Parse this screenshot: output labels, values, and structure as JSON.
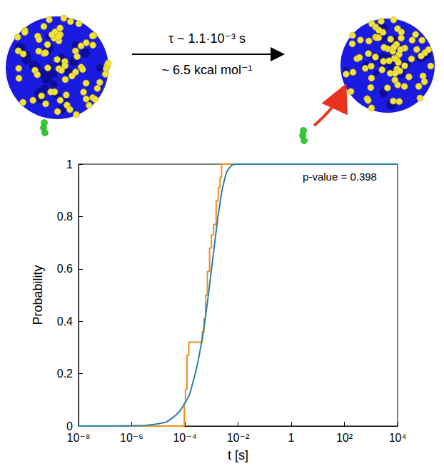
{
  "diagram": {
    "arrow_label_top": "τ ~ 1.1·10⁻³ s",
    "arrow_label_bottom": "~ 6.5 kcal mol⁻¹"
  },
  "chart_data": {
    "type": "line",
    "x_label": "t [s]",
    "y_label": "Probability",
    "annotations": [
      "p-value = 0.398"
    ],
    "log": "x",
    "grid": false,
    "xlim": [
      1e-08,
      10000
    ],
    "xticks": [
      {
        "value": 1e-08,
        "label": "10⁻⁸"
      },
      {
        "value": 1e-06,
        "label": "10⁻⁶"
      },
      {
        "value": 0.0001,
        "label": "10⁻⁴"
      },
      {
        "value": 0.01,
        "label": "10⁻²"
      },
      1,
      {
        "value": 100,
        "label": "10²"
      },
      {
        "value": 10000,
        "label": "10⁴"
      }
    ],
    "ylim": [
      0,
      1
    ],
    "yticks": [
      0,
      0.2,
      0.4,
      0.6,
      0.8,
      1
    ],
    "series": [
      {
        "type": "line",
        "line_style": "step",
        "color": "#f28e1c",
        "x": [
          1e-08,
          9.5e-05,
          0.000105,
          0.00012,
          0.00014,
          0.00045,
          0.00052,
          0.0006,
          0.0007,
          0.00085,
          0.001,
          0.0012,
          0.0015,
          0.0018,
          0.0021,
          0.0024,
          10000
        ],
        "values": [
          0,
          0.09,
          0.14,
          0.27,
          0.32,
          0.36,
          0.41,
          0.5,
          0.59,
          0.68,
          0.73,
          0.77,
          0.86,
          0.91,
          0.95,
          1,
          1
        ]
      },
      {
        "type": "line",
        "line_style": "solid",
        "color": "#2a7fa8",
        "x": [
          1e-08,
          1e-06,
          1e-05,
          3e-05,
          0.0001,
          0.0002,
          0.0004,
          0.0006,
          0.001,
          0.0015,
          0.002,
          0.003,
          0.005,
          0.01,
          10000
        ],
        "values": [
          0,
          0.001,
          0.009,
          0.027,
          0.087,
          0.166,
          0.305,
          0.42,
          0.597,
          0.744,
          0.838,
          0.935,
          0.989,
          1,
          1
        ]
      }
    ]
  }
}
